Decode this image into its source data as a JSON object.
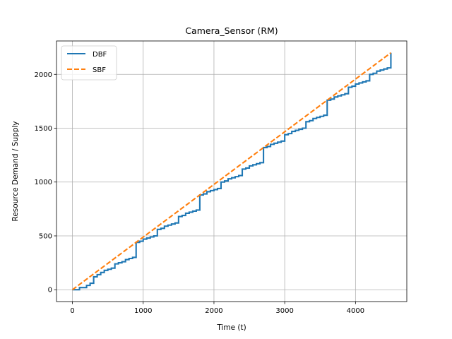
{
  "chart_data": {
    "type": "line",
    "title": "Camera_Sensor (RM)",
    "xlabel": "Time (t)",
    "ylabel": "Resource Demand / Supply",
    "xlim": [
      -225,
      4725
    ],
    "ylim": [
      -110,
      2310
    ],
    "xticks": [
      0,
      1000,
      2000,
      3000,
      4000
    ],
    "yticks": [
      0,
      500,
      1000,
      1500,
      2000
    ],
    "grid": true,
    "legend_position": "top-left",
    "series": [
      {
        "name": "DBF",
        "color": "#1f77b4",
        "style": "solid-step",
        "points": [
          [
            0,
            0
          ],
          [
            100,
            0
          ],
          [
            100,
            20
          ],
          [
            200,
            20
          ],
          [
            200,
            40
          ],
          [
            250,
            40
          ],
          [
            250,
            60
          ],
          [
            300,
            60
          ],
          [
            300,
            120
          ],
          [
            350,
            120
          ],
          [
            350,
            140
          ],
          [
            400,
            140
          ],
          [
            400,
            160
          ],
          [
            450,
            160
          ],
          [
            450,
            180
          ],
          [
            500,
            180
          ],
          [
            500,
            190
          ],
          [
            550,
            190
          ],
          [
            550,
            200
          ],
          [
            600,
            200
          ],
          [
            600,
            240
          ],
          [
            650,
            240
          ],
          [
            650,
            250
          ],
          [
            700,
            250
          ],
          [
            700,
            260
          ],
          [
            750,
            260
          ],
          [
            750,
            280
          ],
          [
            800,
            280
          ],
          [
            800,
            290
          ],
          [
            850,
            290
          ],
          [
            850,
            300
          ],
          [
            900,
            300
          ],
          [
            900,
            440
          ],
          [
            950,
            440
          ],
          [
            950,
            450
          ],
          [
            1000,
            450
          ],
          [
            1000,
            470
          ],
          [
            1050,
            470
          ],
          [
            1050,
            480
          ],
          [
            1100,
            480
          ],
          [
            1100,
            490
          ],
          [
            1150,
            490
          ],
          [
            1150,
            500
          ],
          [
            1200,
            500
          ],
          [
            1200,
            560
          ],
          [
            1250,
            560
          ],
          [
            1250,
            570
          ],
          [
            1300,
            570
          ],
          [
            1300,
            590
          ],
          [
            1350,
            590
          ],
          [
            1350,
            600
          ],
          [
            1400,
            600
          ],
          [
            1400,
            610
          ],
          [
            1450,
            610
          ],
          [
            1450,
            620
          ],
          [
            1500,
            620
          ],
          [
            1500,
            680
          ],
          [
            1550,
            680
          ],
          [
            1550,
            690
          ],
          [
            1600,
            690
          ],
          [
            1600,
            710
          ],
          [
            1650,
            710
          ],
          [
            1650,
            720
          ],
          [
            1700,
            720
          ],
          [
            1700,
            730
          ],
          [
            1750,
            730
          ],
          [
            1750,
            740
          ],
          [
            1800,
            740
          ],
          [
            1800,
            880
          ],
          [
            1850,
            880
          ],
          [
            1850,
            890
          ],
          [
            1900,
            890
          ],
          [
            1900,
            910
          ],
          [
            1950,
            910
          ],
          [
            1950,
            920
          ],
          [
            2000,
            920
          ],
          [
            2000,
            930
          ],
          [
            2050,
            930
          ],
          [
            2050,
            940
          ],
          [
            2100,
            940
          ],
          [
            2100,
            1000
          ],
          [
            2150,
            1000
          ],
          [
            2150,
            1010
          ],
          [
            2200,
            1010
          ],
          [
            2200,
            1030
          ],
          [
            2250,
            1030
          ],
          [
            2250,
            1040
          ],
          [
            2300,
            1040
          ],
          [
            2300,
            1050
          ],
          [
            2350,
            1050
          ],
          [
            2350,
            1060
          ],
          [
            2400,
            1060
          ],
          [
            2400,
            1120
          ],
          [
            2450,
            1120
          ],
          [
            2450,
            1130
          ],
          [
            2500,
            1130
          ],
          [
            2500,
            1150
          ],
          [
            2550,
            1150
          ],
          [
            2550,
            1160
          ],
          [
            2600,
            1160
          ],
          [
            2600,
            1170
          ],
          [
            2650,
            1170
          ],
          [
            2650,
            1180
          ],
          [
            2700,
            1180
          ],
          [
            2700,
            1320
          ],
          [
            2750,
            1320
          ],
          [
            2750,
            1330
          ],
          [
            2800,
            1330
          ],
          [
            2800,
            1350
          ],
          [
            2850,
            1350
          ],
          [
            2850,
            1360
          ],
          [
            2900,
            1360
          ],
          [
            2900,
            1370
          ],
          [
            2950,
            1370
          ],
          [
            2950,
            1380
          ],
          [
            3000,
            1380
          ],
          [
            3000,
            1440
          ],
          [
            3050,
            1440
          ],
          [
            3050,
            1450
          ],
          [
            3100,
            1450
          ],
          [
            3100,
            1470
          ],
          [
            3150,
            1470
          ],
          [
            3150,
            1480
          ],
          [
            3200,
            1480
          ],
          [
            3200,
            1490
          ],
          [
            3250,
            1490
          ],
          [
            3250,
            1500
          ],
          [
            3300,
            1500
          ],
          [
            3300,
            1560
          ],
          [
            3350,
            1560
          ],
          [
            3350,
            1570
          ],
          [
            3400,
            1570
          ],
          [
            3400,
            1590
          ],
          [
            3450,
            1590
          ],
          [
            3450,
            1600
          ],
          [
            3500,
            1600
          ],
          [
            3500,
            1610
          ],
          [
            3550,
            1610
          ],
          [
            3550,
            1620
          ],
          [
            3600,
            1620
          ],
          [
            3600,
            1760
          ],
          [
            3650,
            1760
          ],
          [
            3650,
            1770
          ],
          [
            3700,
            1770
          ],
          [
            3700,
            1790
          ],
          [
            3750,
            1790
          ],
          [
            3750,
            1800
          ],
          [
            3800,
            1800
          ],
          [
            3800,
            1810
          ],
          [
            3850,
            1810
          ],
          [
            3850,
            1820
          ],
          [
            3900,
            1820
          ],
          [
            3900,
            1880
          ],
          [
            3950,
            1880
          ],
          [
            3950,
            1890
          ],
          [
            4000,
            1890
          ],
          [
            4000,
            1910
          ],
          [
            4050,
            1910
          ],
          [
            4050,
            1920
          ],
          [
            4100,
            1920
          ],
          [
            4100,
            1930
          ],
          [
            4150,
            1930
          ],
          [
            4150,
            1940
          ],
          [
            4200,
            1940
          ],
          [
            4200,
            2000
          ],
          [
            4250,
            2000
          ],
          [
            4250,
            2010
          ],
          [
            4300,
            2010
          ],
          [
            4300,
            2030
          ],
          [
            4350,
            2030
          ],
          [
            4350,
            2040
          ],
          [
            4400,
            2040
          ],
          [
            4400,
            2050
          ],
          [
            4450,
            2050
          ],
          [
            4450,
            2060
          ],
          [
            4500,
            2060
          ],
          [
            4500,
            2200
          ]
        ]
      },
      {
        "name": "SBF",
        "color": "#ff7f0e",
        "style": "dashed",
        "points": [
          [
            0,
            0
          ],
          [
            4500,
            2200
          ]
        ]
      }
    ]
  }
}
